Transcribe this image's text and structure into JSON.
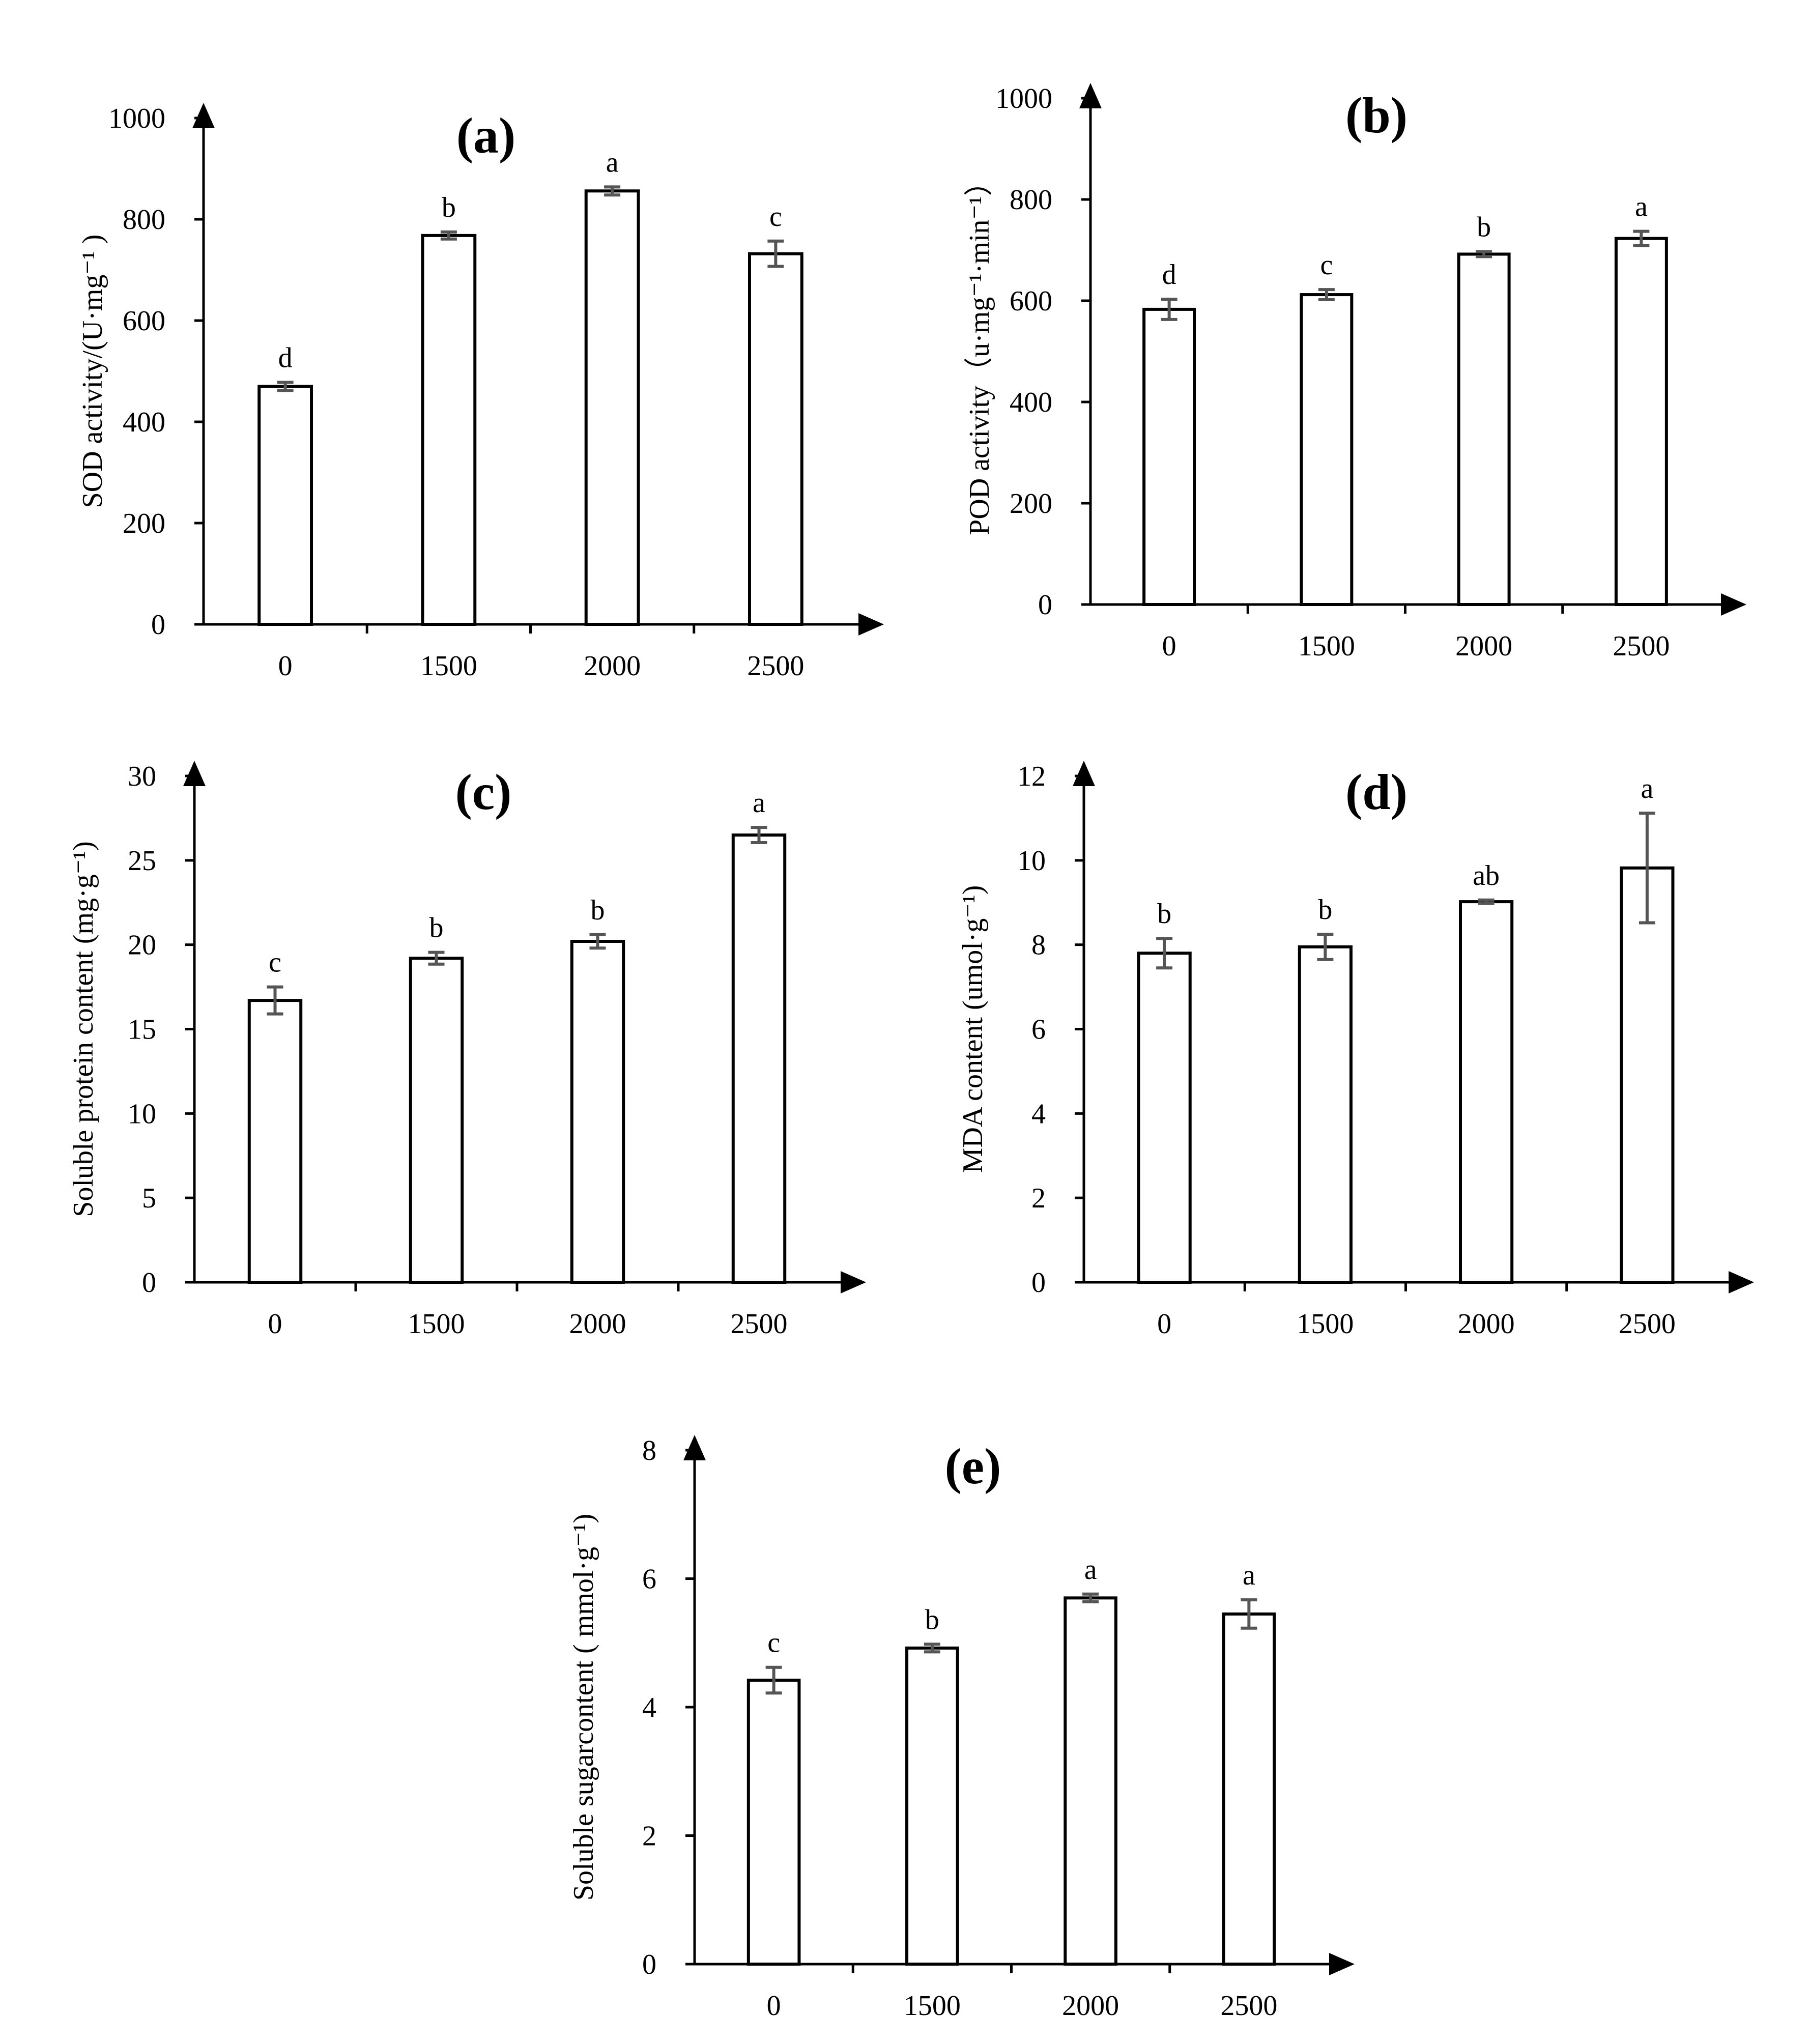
{
  "colors": {
    "bar_fill": "#ffffff",
    "bar_stroke": "#000000",
    "axis": "#000000",
    "error_bar": "#555555",
    "background": "#ffffff"
  },
  "chart_data": [
    {
      "type": "bar",
      "title": "(a)",
      "ylabel": "SOD activity/(U·mg⁻¹ )",
      "xlabel": "",
      "categories": [
        "0",
        "1500",
        "2000",
        "2500"
      ],
      "values": [
        470,
        768,
        856,
        732
      ],
      "errors": [
        8,
        7,
        8,
        25
      ],
      "significance": [
        "d",
        "b",
        "a",
        "c"
      ],
      "ylim": [
        0,
        1000
      ],
      "yticks": [
        "0",
        "200",
        "400",
        "600",
        "800",
        "1000"
      ],
      "grid": false
    },
    {
      "type": "bar",
      "title": "(b)",
      "ylabel": "POD activity（u·mg⁻¹·min⁻¹）",
      "xlabel": "",
      "categories": [
        "0",
        "1500",
        "2000",
        "2500"
      ],
      "values": [
        583,
        612,
        692,
        723
      ],
      "errors": [
        20,
        10,
        5,
        14
      ],
      "significance": [
        "d",
        "c",
        "b",
        "a"
      ],
      "ylim": [
        0,
        1000
      ],
      "yticks": [
        "0",
        "200",
        "400",
        "600",
        "800",
        "1000"
      ],
      "grid": false
    },
    {
      "type": "bar",
      "title": "(c)",
      "ylabel": "Soluble protein content (mg·g⁻¹)",
      "xlabel": "",
      "categories": [
        "0",
        "1500",
        "2000",
        "2500"
      ],
      "values": [
        16.7,
        19.2,
        20.2,
        26.5
      ],
      "errors": [
        0.8,
        0.35,
        0.4,
        0.45
      ],
      "significance": [
        "c",
        "b",
        "b",
        "a"
      ],
      "ylim": [
        0,
        30
      ],
      "yticks": [
        "0",
        "5",
        "10",
        "15",
        "20",
        "25",
        "30"
      ],
      "grid": false
    },
    {
      "type": "bar",
      "title": "(d)",
      "ylabel": "MDA content (umol·g⁻¹)",
      "xlabel": "",
      "categories": [
        "0",
        "1500",
        "2000",
        "2500"
      ],
      "values": [
        7.8,
        7.95,
        9.02,
        9.82
      ],
      "errors": [
        0.35,
        0.3,
        0.04,
        1.3
      ],
      "significance": [
        "b",
        "b",
        "ab",
        "a"
      ],
      "ylim": [
        0,
        12
      ],
      "yticks": [
        "0",
        "2",
        "4",
        "6",
        "8",
        "10",
        "12"
      ],
      "grid": false
    },
    {
      "type": "bar",
      "title": "(e)",
      "ylabel": "Soluble sugarcontent ( mmol·g⁻¹)",
      "xlabel": "",
      "categories": [
        "0",
        "1500",
        "2000",
        "2500"
      ],
      "values": [
        4.42,
        4.92,
        5.7,
        5.45
      ],
      "errors": [
        0.2,
        0.06,
        0.06,
        0.22
      ],
      "significance": [
        "c",
        "b",
        "a",
        "a"
      ],
      "ylim": [
        0,
        8
      ],
      "yticks": [
        "0",
        "2",
        "4",
        "6",
        "8"
      ],
      "grid": false
    }
  ]
}
